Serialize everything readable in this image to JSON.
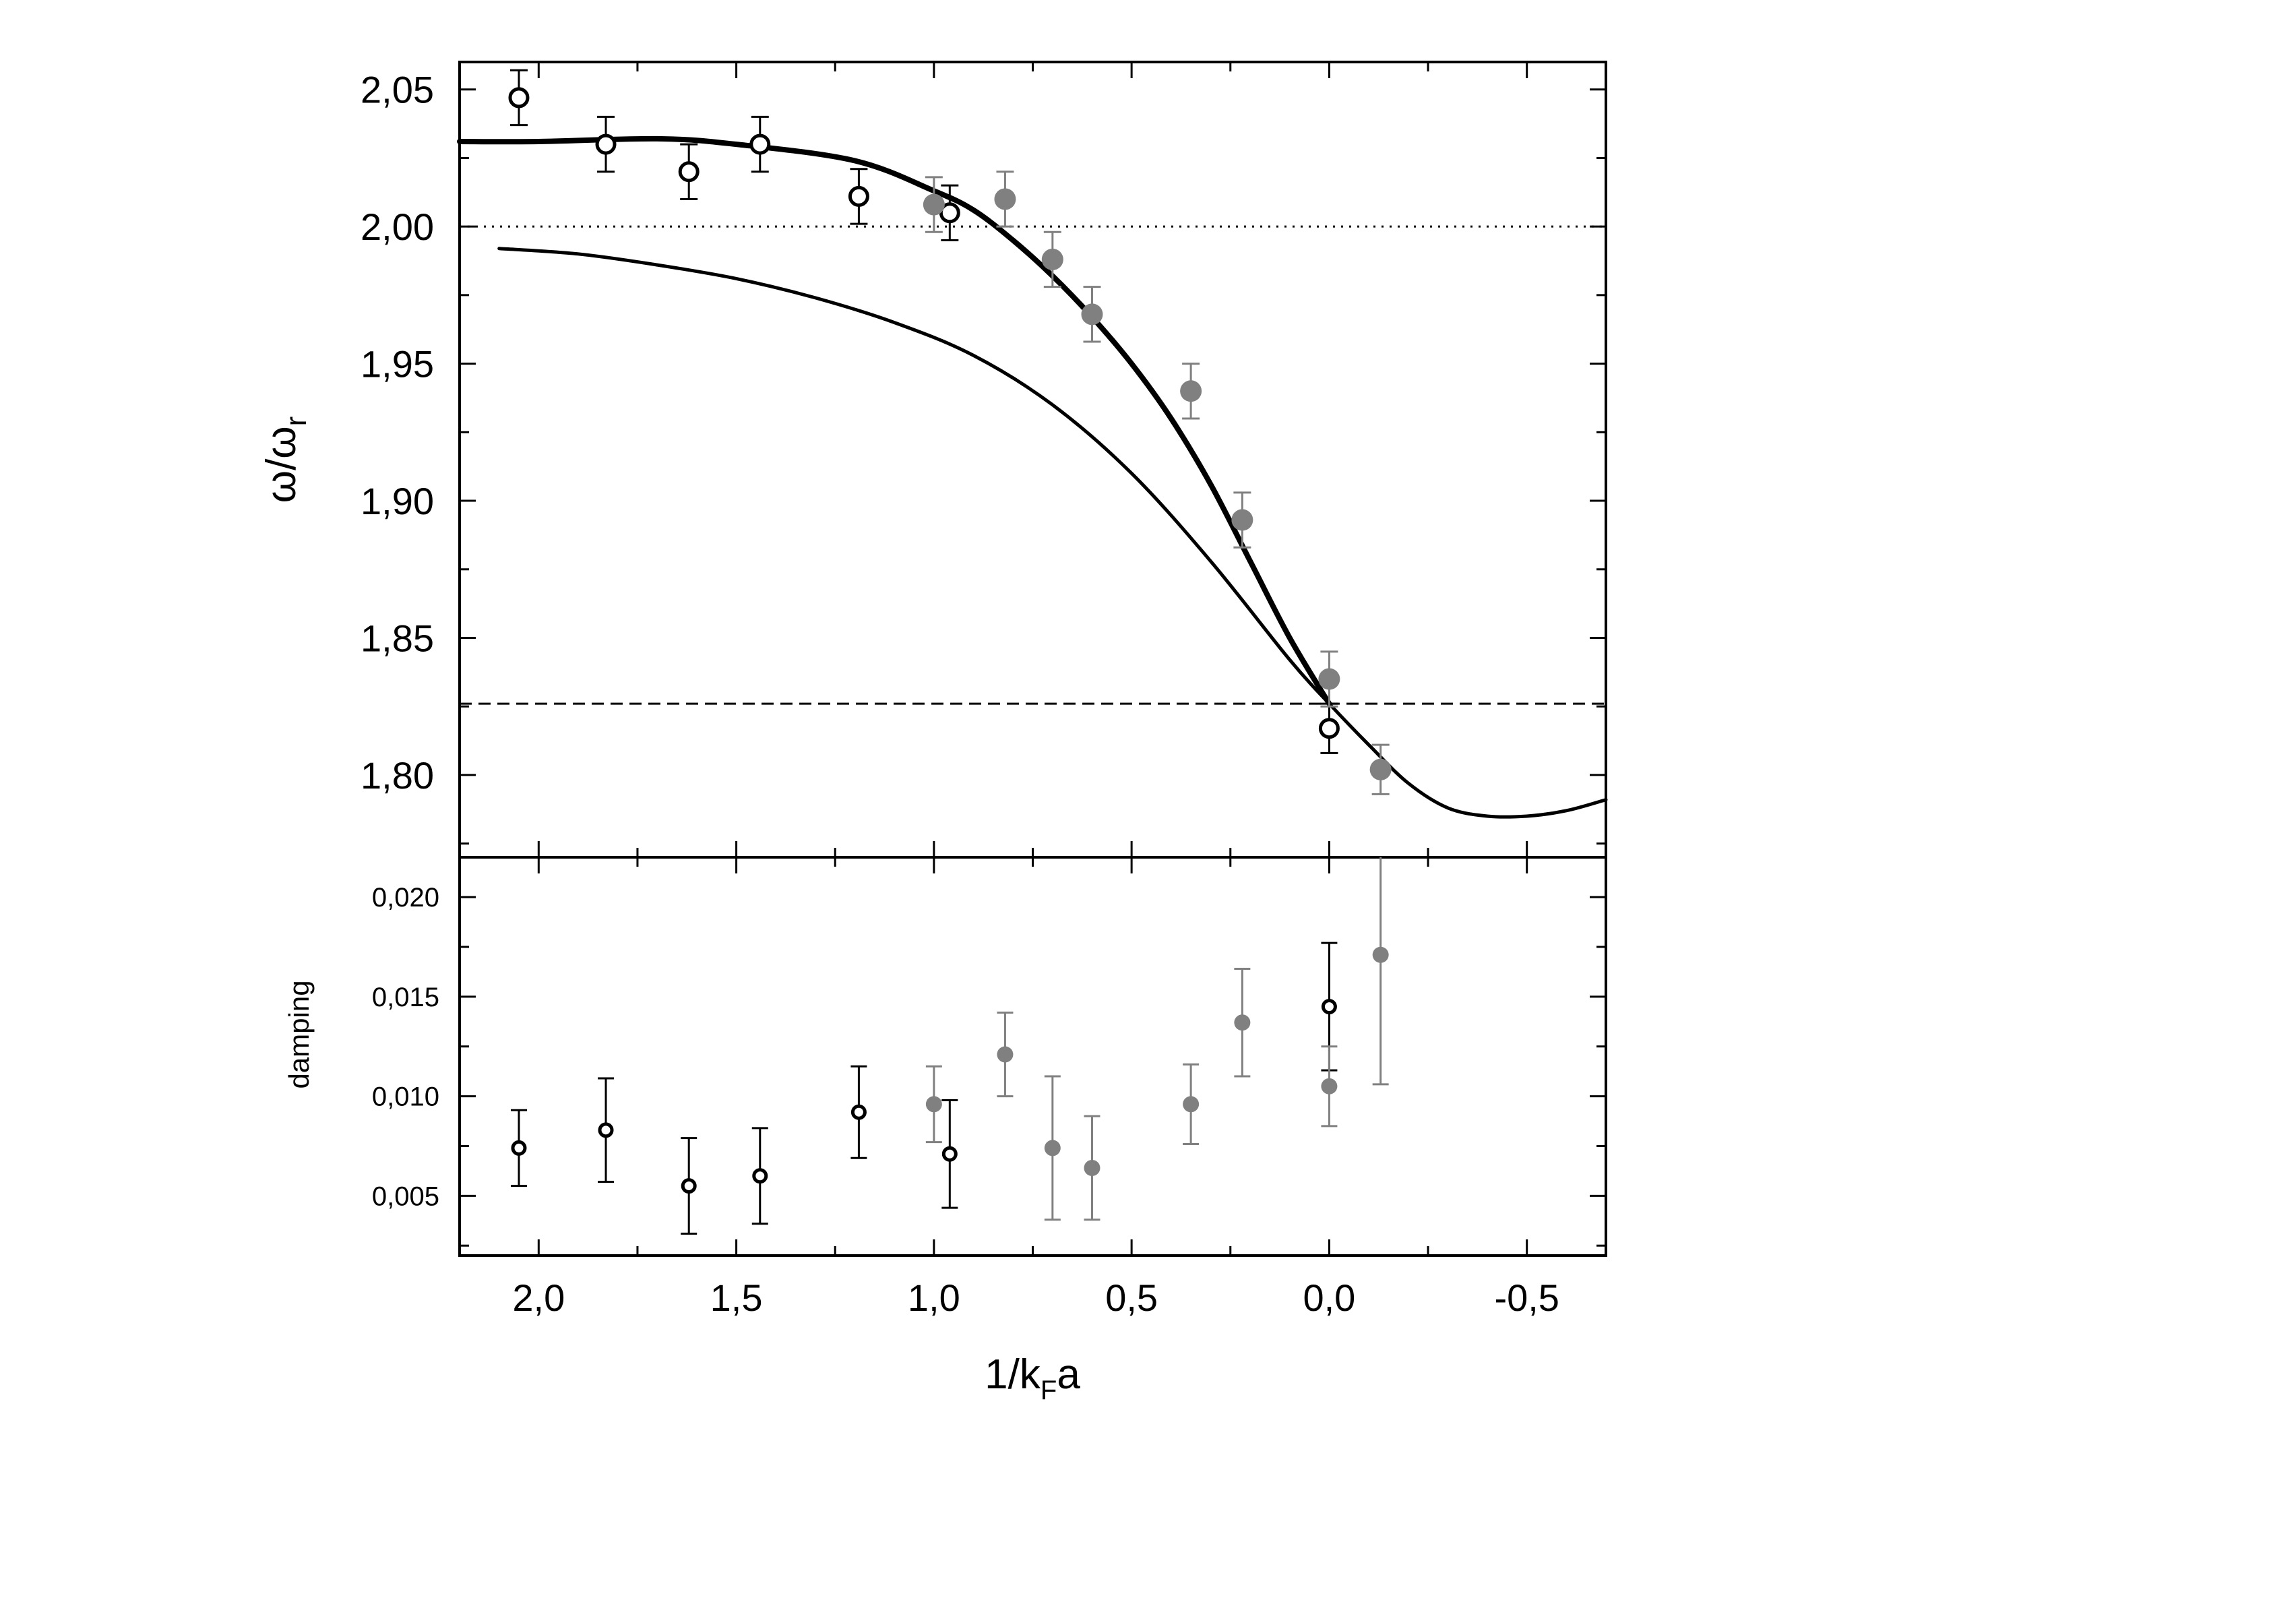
{
  "chart_data": [
    {
      "type": "scatter",
      "panel": "top",
      "title": "",
      "xlabel": "1/k_Fa",
      "ylabel": "ω/ω_r",
      "xlim": [
        2.2,
        -0.7
      ],
      "ylim": [
        1.77,
        2.06
      ],
      "x_axis_reversed": true,
      "grid": false,
      "xticks": [
        2.0,
        1.5,
        1.0,
        0.5,
        0.0,
        -0.5
      ],
      "xtick_labels": [
        "2,0",
        "1,5",
        "1,0",
        "0,5",
        "0,0",
        "-0,5"
      ],
      "yticks": [
        1.8,
        1.85,
        1.9,
        1.95,
        2.0,
        2.05
      ],
      "ytick_labels": [
        "1,80",
        "1,85",
        "1,90",
        "1,95",
        "2,00",
        "2,05"
      ],
      "colors": {
        "open_points": "#000000",
        "filled_points": "#808080",
        "lines": "#000000",
        "errorbar_gray": "#808080"
      },
      "series": [
        {
          "marker": "open-circle",
          "points": [
            {
              "x": 2.05,
              "y": 2.047,
              "err": 0.01
            },
            {
              "x": 1.83,
              "y": 2.03,
              "err": 0.01
            },
            {
              "x": 1.62,
              "y": 2.02,
              "err": 0.01
            },
            {
              "x": 1.44,
              "y": 2.03,
              "err": 0.01
            },
            {
              "x": 1.19,
              "y": 2.011,
              "err": 0.01
            },
            {
              "x": 0.96,
              "y": 2.005,
              "err": 0.01
            },
            {
              "x": 0.0,
              "y": 1.817,
              "err": 0.009
            }
          ]
        },
        {
          "marker": "filled-circle",
          "points": [
            {
              "x": 1.0,
              "y": 2.008,
              "err": 0.01
            },
            {
              "x": 0.82,
              "y": 2.01,
              "err": 0.01
            },
            {
              "x": 0.7,
              "y": 1.988,
              "err": 0.01
            },
            {
              "x": 0.6,
              "y": 1.968,
              "err": 0.01
            },
            {
              "x": 0.35,
              "y": 1.94,
              "err": 0.01
            },
            {
              "x": 0.22,
              "y": 1.893,
              "err": 0.01
            },
            {
              "x": 0.0,
              "y": 1.835,
              "err": 0.01
            },
            {
              "x": -0.13,
              "y": 1.802,
              "err": 0.009
            }
          ]
        },
        {
          "line_style": "thick",
          "x": [
            2.2,
            2.0,
            1.7,
            1.5,
            1.2,
            1.0,
            0.9,
            0.8,
            0.7,
            0.6,
            0.5,
            0.4,
            0.3,
            0.2,
            0.1,
            0.0
          ],
          "y": [
            2.031,
            2.031,
            2.032,
            2.03,
            2.024,
            2.013,
            2.006,
            1.995,
            1.982,
            1.967,
            1.95,
            1.93,
            1.906,
            1.878,
            1.85,
            1.826
          ]
        },
        {
          "line_style": "thin",
          "x": [
            2.1,
            1.9,
            1.7,
            1.5,
            1.3,
            1.1,
            0.9,
            0.7,
            0.5,
            0.3,
            0.1,
            0.0,
            -0.1,
            -0.2,
            -0.3,
            -0.4,
            -0.5,
            -0.6,
            -0.7
          ],
          "y": [
            1.992,
            1.99,
            1.986,
            1.981,
            1.974,
            1.965,
            1.953,
            1.935,
            1.91,
            1.878,
            1.842,
            1.826,
            1.811,
            1.797,
            1.788,
            1.785,
            1.785,
            1.787,
            1.791
          ]
        }
      ],
      "reference_lines": [
        {
          "style": "dotted",
          "y": 2.0
        },
        {
          "style": "dashed",
          "y": 1.826
        }
      ]
    },
    {
      "type": "scatter",
      "panel": "bottom",
      "title": "",
      "xlabel": "1/k_Fa",
      "ylabel": "damping",
      "xlim": [
        2.2,
        -0.7
      ],
      "ylim": [
        0.002,
        0.022
      ],
      "x_axis_reversed": true,
      "grid": false,
      "yticks": [
        0.005,
        0.01,
        0.015,
        0.02
      ],
      "ytick_labels": [
        "0,005",
        "0,010",
        "0,015",
        "0,020"
      ],
      "series": [
        {
          "marker": "open-circle",
          "points": [
            {
              "x": 2.05,
              "y": 0.0074,
              "err": 0.0019
            },
            {
              "x": 1.83,
              "y": 0.0083,
              "err": 0.0026
            },
            {
              "x": 1.62,
              "y": 0.0055,
              "err": 0.0024
            },
            {
              "x": 1.44,
              "y": 0.006,
              "err": 0.0024
            },
            {
              "x": 1.19,
              "y": 0.0092,
              "err": 0.0023
            },
            {
              "x": 0.96,
              "y": 0.0071,
              "err": 0.0027
            },
            {
              "x": 0.0,
              "y": 0.0145,
              "err": 0.0032
            }
          ]
        },
        {
          "marker": "filled-circle",
          "points": [
            {
              "x": 1.0,
              "y": 0.0096,
              "err": 0.0019
            },
            {
              "x": 0.82,
              "y": 0.0121,
              "err": 0.0021
            },
            {
              "x": 0.7,
              "y": 0.0074,
              "err": 0.0036
            },
            {
              "x": 0.6,
              "y": 0.0064,
              "err": 0.0026
            },
            {
              "x": 0.35,
              "y": 0.0096,
              "err": 0.002
            },
            {
              "x": 0.22,
              "y": 0.0137,
              "err": 0.0027
            },
            {
              "x": 0.0,
              "y": 0.0105,
              "err": 0.002
            },
            {
              "x": -0.13,
              "y": 0.0171,
              "err": 0.0065
            }
          ]
        }
      ]
    }
  ],
  "labels": {
    "y_top_main": "ω/ω",
    "y_top_sub": "r",
    "y_bottom": "damping",
    "x_main": "1/k",
    "x_sub": "F",
    "x_tail": "a"
  }
}
